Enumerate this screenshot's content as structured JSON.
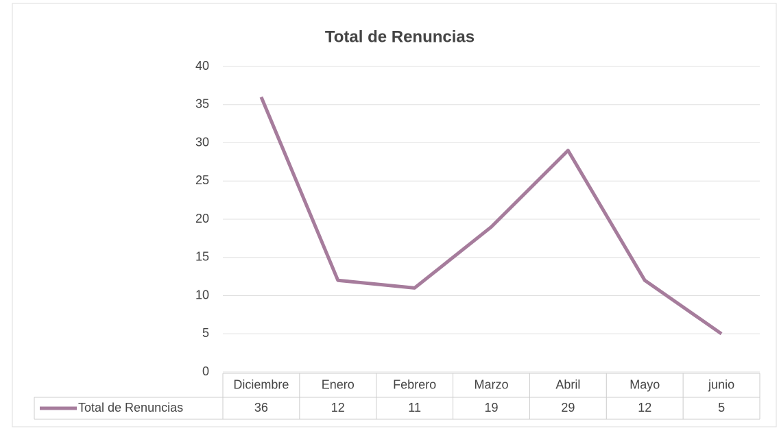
{
  "chart_data": {
    "type": "line",
    "title": "Total de Renuncias",
    "categories": [
      "Diciembre",
      "Enero",
      "Febrero",
      "Marzo",
      "Abril",
      "Mayo",
      "junio"
    ],
    "series": [
      {
        "name": "Total de Renuncias",
        "color": "#a67c9c",
        "values": [
          36,
          12,
          11,
          19,
          29,
          12,
          5
        ]
      }
    ],
    "ylim": [
      0,
      40
    ],
    "yticks": [
      0,
      5,
      10,
      15,
      20,
      25,
      30,
      35,
      40
    ],
    "grid": true,
    "data_table": true
  }
}
